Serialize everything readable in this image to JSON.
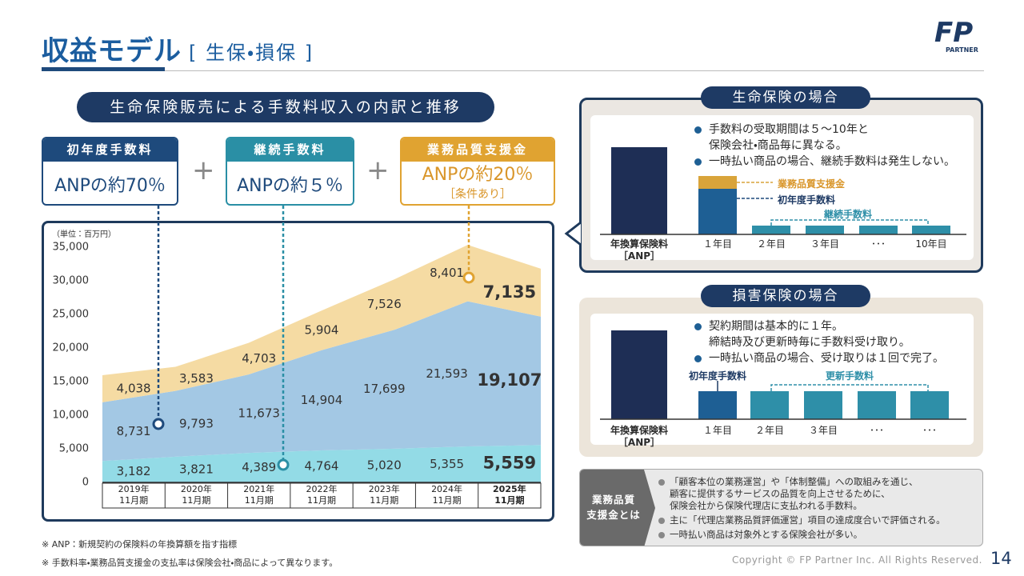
{
  "header": {
    "title": "収益モデル",
    "subtitle": "[ 生保・損保 ]",
    "logo_mark": "FP",
    "logo_text": "PARTNER"
  },
  "section_title": "生命保険販売による手数料収入の内訳と推移",
  "fee_boxes": [
    {
      "rate": "ANPの約70％"
    },
    {
      "rate": "ANPの約５％"
    },
    {
      "rate": "ANPの約20％",
      "note": "［条件あり］"
    }
  ],
  "chart_data": {
    "type": "area",
    "stacked": true,
    "y_unit_label": "（単位：百万円）",
    "categories": [
      "2019年\n11月期",
      "2020年\n11月期",
      "2021年\n11月期",
      "2022年\n11月期",
      "2023年\n11月期",
      "2024年\n11月期",
      "2025年\n11月期"
    ],
    "series": [
      {
        "name": "継続手数料",
        "color": "#93dbe6",
        "values": [
          3182,
          3821,
          4389,
          4764,
          5020,
          5355,
          5559
        ],
        "value_labels": [
          "3,182",
          "3,821",
          "4,389",
          "4,764",
          "5,020",
          "5,355",
          "5,559"
        ]
      },
      {
        "name": "初年度手数料",
        "color": "#a3c8e4",
        "values": [
          8731,
          9793,
          11673,
          14904,
          17699,
          21593,
          19107
        ],
        "value_labels": [
          "8,731",
          "9,793",
          "11,673",
          "14,904",
          "17,699",
          "21,593",
          "19,107"
        ]
      },
      {
        "name": "業務品質支援金",
        "color": "#f5dba3",
        "values": [
          4038,
          3583,
          4703,
          5904,
          7526,
          8401,
          7135
        ],
        "value_labels": [
          "4,038",
          "3,583",
          "4,703",
          "5,904",
          "7,526",
          "8,401",
          "7,135"
        ]
      }
    ],
    "ylim": [
      0,
      35000
    ],
    "yticks": [
      0,
      {
        "value": 5000,
        "label": "5,000"
      },
      {
        "value": 10000,
        "label": "10,000"
      },
      {
        "value": 15000,
        "label": "15,000"
      },
      {
        "value": 20000,
        "label": "20,000"
      },
      {
        "value": 25000,
        "label": "25,000"
      },
      {
        "value": 30000,
        "label": "30,000"
      },
      {
        "value": 35000,
        "label": "35,000"
      }
    ],
    "grid": false,
    "highlight_last": true
  },
  "life_insurance": {
    "title": "生命保険の場合",
    "bullets": [
      "手数料の受取期間は５～10年と\n保険会社・商品毎に異なる。",
      "一時払い商品の場合、継続手数料は発生しない。"
    ],
    "legend": {
      "quality": "業務品質支援金",
      "first_year": "初年度手数料",
      "renewal": "継続手数料"
    },
    "x_labels": [
      "年換算保険料\n［ANP］",
      "１年目",
      "２年目",
      "３年目",
      "･･･",
      "10年目"
    ]
  },
  "non_life_insurance": {
    "title": "損害保険の場合",
    "bullets": [
      "契約期間は基本的に１年。\n締結時及び更新時毎に手数料受け取り。",
      "一時払い商品の場合、受け取りは１回で完了。"
    ],
    "legend": {
      "first_year": "初年度手数料",
      "renewal": "更新手数料"
    },
    "x_labels": [
      "年換算保険料\n［ANP］",
      "１年目",
      "２年目",
      "３年目",
      "･･･",
      "･･･"
    ]
  },
  "quality_support": {
    "title": "業務品質\n支援金とは",
    "bullets": [
      "「顧客本位の業務運営」や「体制整備」への取組みを通じ、\n顧客に提供するサービスの品質を向上させるために、\n保険会社から保険代理店に支払われる手数料。",
      "主に「代理店業務品質評価運営」項目の達成度合いで評価される。",
      "一時払い商品は対象外とする保険会社が多い。"
    ]
  },
  "footnotes": [
    "※ ANP：新規契約の保険料の年換算額を指す指標",
    "※ 手数料率・業務品質支援金の支払率は保険会社・商品によって異なります。"
  ],
  "footer": {
    "copyright": "Copyright © FP Partner Inc. All Rights Reserved.",
    "page": "14"
  }
}
